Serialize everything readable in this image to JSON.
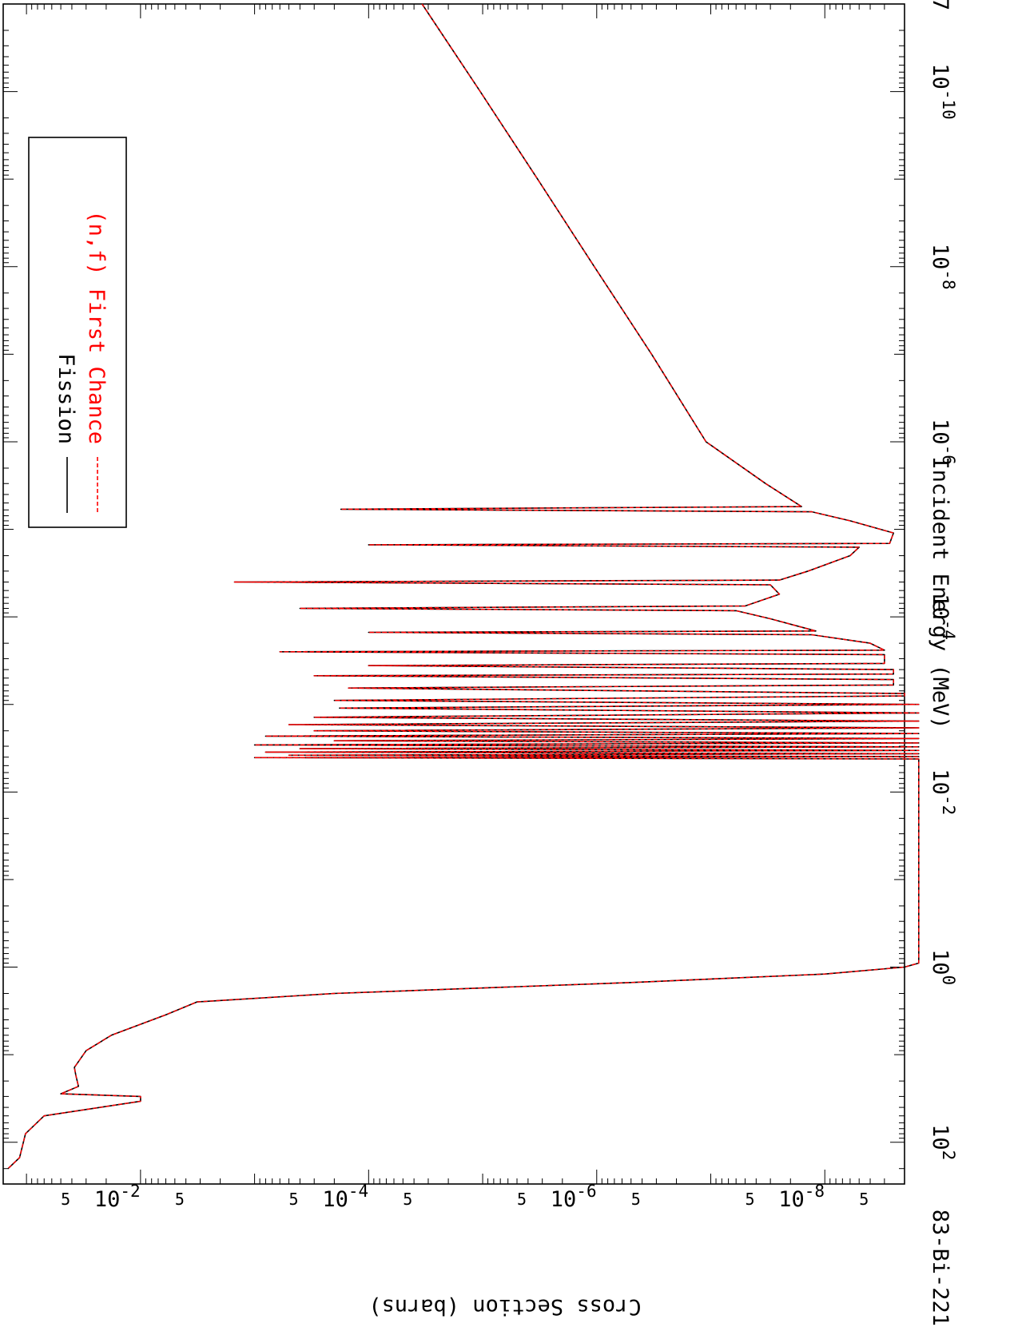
{
  "chart_data": {
    "type": "line",
    "orientation": "rotated-90-clockwise",
    "title": "",
    "isotope_label": "83-Bi-221",
    "xlabel": "Incident Energy (MeV)",
    "ylabel": "Cross Section (barns)",
    "x_scale": "log",
    "y_scale": "log",
    "xlim": [
      1e-11,
      300
    ],
    "ylim": [
      2e-09,
      0.16
    ],
    "x_major_ticks": [
      1e-10,
      1e-08,
      1e-06,
      0.0001,
      0.01,
      1,
      100
    ],
    "x_tick_labels": [
      {
        "base": "10",
        "exp": "-10"
      },
      {
        "base": "10",
        "exp": "-8"
      },
      {
        "base": "10",
        "exp": "-6"
      },
      {
        "base": "10",
        "exp": "-4"
      },
      {
        "base": "10",
        "exp": "-2"
      },
      {
        "base": "10",
        "exp": "0"
      },
      {
        "base": "10",
        "exp": "2"
      }
    ],
    "y_major_ticks": [
      1e-08,
      1e-06,
      0.0001,
      0.01
    ],
    "y_tick_labels": [
      {
        "base": "10",
        "exp": "-8"
      },
      {
        "base": "10",
        "exp": "-6"
      },
      {
        "base": "10",
        "exp": "-4"
      },
      {
        "base": "10",
        "exp": "-2"
      }
    ],
    "y_minor_label": "5",
    "x_corner_label": "7",
    "legend_position": "top-left",
    "grid": false,
    "series": [
      {
        "name": "Fission",
        "color": "#000000",
        "dash": "solid",
        "x": [
          1e-11,
          1e-10,
          1e-09,
          1e-08,
          1e-07,
          1e-06,
          3e-06,
          5.5e-06,
          5.9e-06,
          6.3e-06,
          8e-06,
          1.1e-05,
          1.45e-05,
          1.5e-05,
          1.6e-05,
          2e-05,
          3e-05,
          3.8e-05,
          4e-05,
          4.3e-05,
          5.5e-05,
          7.5e-05,
          8e-05,
          8.5e-05,
          0.000105,
          0.000145,
          0.00015,
          0.00016,
          0.0002,
          0.00024,
          0.00025,
          0.00027,
          0.00034,
          0.00036,
          0.0004,
          0.00045,
          0.00047,
          0.00052,
          0.0006,
          0.00065,
          0.00075,
          0.0008,
          0.0009,
          0.001,
          0.0011,
          0.00125,
          0.0014,
          0.00155,
          0.0017,
          0.00185,
          0.002,
          0.00215,
          0.0023,
          0.00245,
          0.0026,
          0.00275,
          0.0029,
          0.00305,
          0.0032,
          0.00335,
          0.0035,
          0.00365,
          0.0038,
          0.00395,
          0.00405,
          0.0042,
          0.0044,
          0.9,
          1.0,
          1.2,
          1.5,
          2.0,
          2.5,
          3.5,
          6,
          9,
          12,
          14,
          17,
          23,
          28,
          30,
          34,
          50,
          80,
          150,
          200
        ],
        "y": [
          3.4e-05,
          1.05e-05,
          3.3e-06,
          1.05e-06,
          3.3e-07,
          1.1e-07,
          3.3e-08,
          1.6e-08,
          0.000175,
          1.3e-08,
          6e-09,
          2.5e-09,
          2.7e-09,
          0.0001,
          5e-09,
          6e-09,
          1.4e-08,
          2.5e-08,
          0.0015,
          3e-08,
          2.5e-08,
          5e-08,
          0.0004,
          6e-08,
          3e-08,
          1.2e-08,
          0.0001,
          1.3e-08,
          4e-09,
          3e-09,
          0.0006,
          3e-09,
          3e-09,
          0.0001,
          2.5e-09,
          2.5e-09,
          0.0003,
          2.5e-09,
          2.5e-09,
          0.00015,
          2e-09,
          2e-09,
          0.0002,
          1.5e-09,
          0.00018,
          1.5e-09,
          0.0003,
          1.5e-09,
          0.0005,
          1.5e-09,
          0.0003,
          1.5e-09,
          0.0008,
          1.5e-09,
          0.0002,
          1.5e-09,
          0.001,
          1.5e-09,
          0.0004,
          1.5e-09,
          0.0008,
          1.5e-09,
          0.0005,
          1.5e-09,
          0.001,
          1.5e-09,
          1.5e-09,
          1.5e-09,
          2e-09,
          1e-08,
          5e-07,
          0.0002,
          0.0032,
          0.006,
          0.018,
          0.03,
          0.035,
          0.038,
          0.037,
          0.035,
          0.05,
          0.01,
          0.01,
          0.07,
          0.102,
          0.115,
          0.145
        ]
      },
      {
        "name": "(n,f) First Chance",
        "color": "#ff0000",
        "dash": "dashed",
        "same_as_series": 0
      }
    ]
  }
}
